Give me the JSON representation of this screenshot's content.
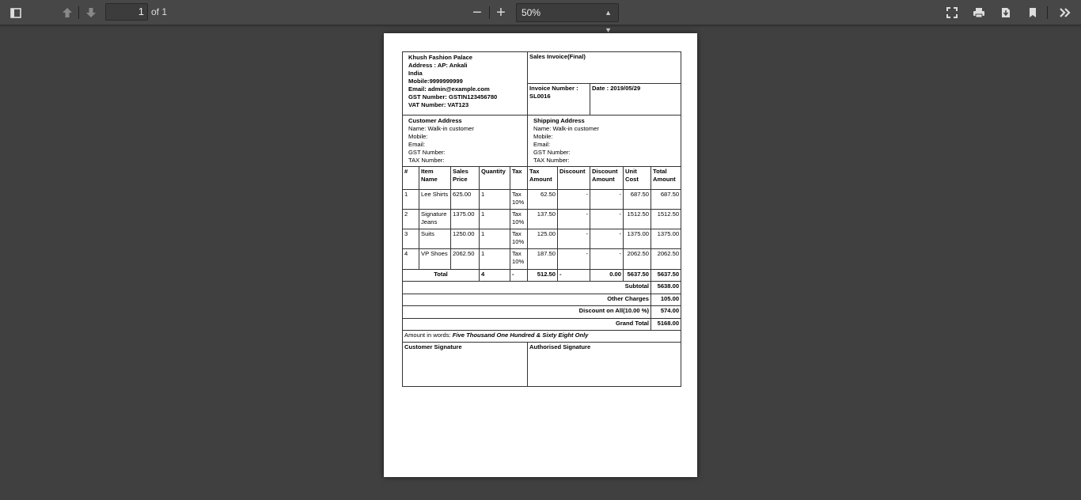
{
  "toolbar": {
    "page_current": "1",
    "page_of": "of 1",
    "zoom": "50%"
  },
  "invoice": {
    "company": [
      "Khush Fashion Palace",
      "Address : AP: Ankali",
      "India",
      "Mobile:9999999999",
      "Email: admin@example.com",
      "GST Number: GSTIN123456780",
      "VAT Number: VAT123"
    ],
    "title": "Sales Invoice(Final)",
    "invoice_number_label": "Invoice Number :",
    "invoice_number": "SL0016",
    "date": "Date : 2019/05/29",
    "customer": [
      "Customer Address",
      "Name: Walk-in customer",
      "Mobile:",
      "Email:",
      "GST Number:",
      "TAX Number:"
    ],
    "shipping": [
      "Shipping Address",
      "Name: Walk-in customer",
      "Mobile:",
      "Email:",
      "GST Number:",
      "TAX Number:"
    ],
    "columns": [
      "#",
      "Item Name",
      "Sales Price",
      "Quantity",
      "Tax",
      "Tax Amount",
      "Discount",
      "Discount Amount",
      "Unit Cost",
      "Total Amount"
    ],
    "items": [
      [
        "1",
        "Lee Shirts",
        "625.00",
        "1",
        "Tax 10%",
        "62.50",
        "-",
        "-",
        "687.50",
        "687.50"
      ],
      [
        "2",
        "Signature Jeans",
        "1375.00",
        "1",
        "Tax 10%",
        "137.50",
        "-",
        "-",
        "1512.50",
        "1512.50"
      ],
      [
        "3",
        "Suits",
        "1250.00",
        "1",
        "Tax 10%",
        "125.00",
        "-",
        "-",
        "1375.00",
        "1375.00"
      ],
      [
        "4",
        "VP Shoes",
        "2062.50",
        "1",
        "Tax 10%",
        "187.50",
        "-",
        "-",
        "2062.50",
        "2062.50"
      ]
    ],
    "total": {
      "label": "Total",
      "quantity": "4",
      "tax": "-",
      "tax_amount": "512.50",
      "discount": "-",
      "discount_amount": "0.00",
      "unit_cost": "5637.50",
      "total_amount": "5637.50"
    },
    "summary": [
      {
        "label": "Subtotal",
        "value": "5638.00"
      },
      {
        "label": "Other Charges",
        "value": "105.00"
      },
      {
        "label": "Discount on All(10.00 %)",
        "value": "574.00"
      },
      {
        "label": "Grand Total",
        "value": "5168.00"
      }
    ],
    "amount_words_label": "Amount in words: ",
    "amount_words": "Five Thousand One Hundred & Sixty Eight Only",
    "customer_signature": "Customer Signature",
    "authorised_signature": "Authorised Signature"
  }
}
